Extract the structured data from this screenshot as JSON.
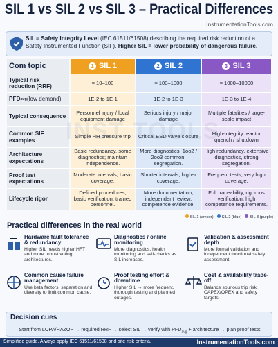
{
  "header": {
    "title": "SIL 1 vs SIL 2 vs SIL 3 – Practical Differences",
    "site": "InstrumentationTools.com"
  },
  "intro": {
    "parts": [
      "SIL = Safety Integrity Level",
      " (IEC 61511/61508) describing the required risk reduction of a Safety Instrumented Function (SIF). ",
      "Higher SIL = lower probability of dangerous failure."
    ]
  },
  "watermark": "INST TOOLS",
  "table": {
    "columns": [
      "Com topic",
      "SIL 1",
      "SIL 2",
      "SIL 3"
    ],
    "badges": [
      "1",
      "2",
      "3"
    ],
    "rows": [
      {
        "label": "Typical risk reduction (RRF)",
        "cells": [
          "≈ 10–100",
          "≈ 100–1000",
          "≈ 1000–10000"
        ]
      },
      {
        "label": "PFD",
        "label_sub": "avg",
        "label_rest": " (low demand)",
        "cells": [
          "1E-2 to 1E-1",
          "1E-2 to 1E-3",
          "1E-3 to 1E-4"
        ]
      },
      {
        "label": "Typical consequence",
        "cells": [
          "Personnel injury / local equipment damage",
          "Serious injury / major damage",
          "Multiple fatalities / large-scale impact"
        ]
      },
      {
        "label": "Common SIF examples",
        "cells": [
          "Simple HH pressure trip",
          "Critical ESD valve closure",
          "High-integrity reactor quench / shutdown"
        ]
      },
      {
        "label": "Architecture expectations",
        "cells": [
          "Basic redundancy, some diagnostics; maintain independence.",
          "More diagnostics, 1oo2 / 2oo3 common; segregation.",
          "High redundancy, extensive diagnostics, strong segregation."
        ]
      },
      {
        "label": "Proof test expectations",
        "cells": [
          "Moderate intervals, basic coverage.",
          "Shorter intervals, higher coverage.",
          "Frequent tests, very high coverage."
        ]
      },
      {
        "label": "Lifecycle rigor",
        "cells": [
          "Defined procedures, basic verification, trained personnel.",
          "More documentation, independent review, competence evidence.",
          "Full traceability, rigorous verification, high competence requirements."
        ]
      }
    ]
  },
  "legend": [
    "SIL 1 (amber)",
    "SIL 2 (blue)",
    "SIL 3 (purple)"
  ],
  "practical": {
    "title": "Practical differences in the real world",
    "cards": [
      {
        "title": "Hardware fault tolerance & redundancy",
        "text": "Higher SIL needs higher HFT and more robust voting architectures."
      },
      {
        "title": "Diagnostics / online monitoring",
        "text": "More diagnostics, health monitoring and self-checks as SIL increases."
      },
      {
        "title": "Validation & assessment depth",
        "text": "More formal validation and independent functional safety assessment."
      },
      {
        "title": "Common cause failure management",
        "text": "Use beta factors, separation and diversity to limit common cause."
      },
      {
        "title": "Proof testing effort & downtime",
        "text": "Higher SIL → more frequent, thorough testing and planned outages."
      },
      {
        "title": "Cost & availability trade-off",
        "text": "Balance spurious trip risk, CAPEX/OPEX and safety targets."
      }
    ]
  },
  "cues": {
    "title": "Decision cues",
    "text": [
      "Start from LOPA/HAZOP → required RRF → select SIL → verify with PFD",
      "avg",
      " + architecture → plan proof tests."
    ]
  },
  "footer": {
    "note": "Simplified guide. Always apply IEC 61511/61508 and site risk criteria.",
    "site": "InstrumentationTools.com"
  }
}
